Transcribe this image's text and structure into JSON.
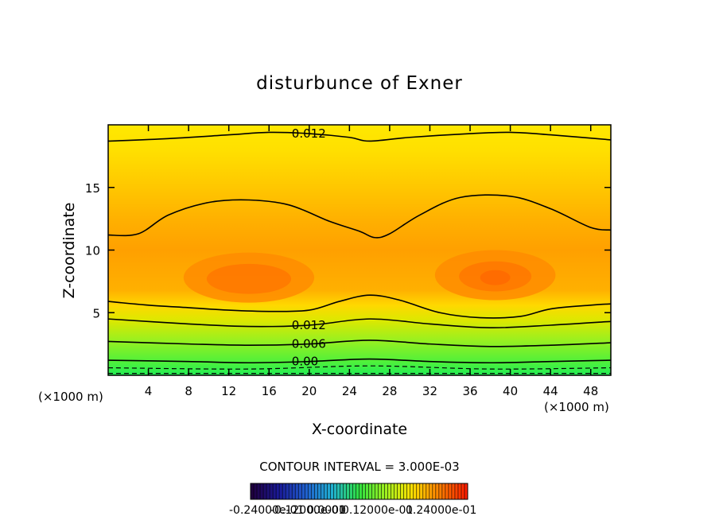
{
  "chart_data": {
    "type": "contour",
    "title": "disturbunce of Exner",
    "xlabel": "X-coordinate",
    "ylabel": "Z-coordinate",
    "x_unit": "(×1000 m)",
    "x_unit_right": "(×1000 m)",
    "xlim": [
      0,
      50
    ],
    "ylim": [
      0,
      20
    ],
    "x_ticks": [
      "4",
      "8",
      "12",
      "16",
      "20",
      "24",
      "28",
      "32",
      "36",
      "40",
      "44",
      "48"
    ],
    "x_tick_values": [
      4,
      8,
      12,
      16,
      20,
      24,
      28,
      32,
      36,
      40,
      44,
      48
    ],
    "y_ticks": [
      "5",
      "10",
      "15"
    ],
    "y_tick_values": [
      5,
      10,
      15
    ],
    "contour_interval_text": "CONTOUR INTERVAL = 3.000E-03",
    "contour_interval": 0.003,
    "line_contours": [
      {
        "label": "0.012",
        "points": [
          [
            0,
            18.7
          ],
          [
            6,
            18.9
          ],
          [
            12,
            19.2
          ],
          [
            16,
            19.4
          ],
          [
            20,
            19.3
          ],
          [
            24,
            19.0
          ],
          [
            26,
            18.7
          ],
          [
            30,
            19.0
          ],
          [
            36,
            19.3
          ],
          [
            40,
            19.4
          ],
          [
            44,
            19.2
          ],
          [
            50,
            18.8
          ]
        ]
      },
      {
        "label": "",
        "points": [
          [
            0,
            11.2
          ],
          [
            3,
            11.3
          ],
          [
            6,
            12.8
          ],
          [
            10,
            13.8
          ],
          [
            14,
            14.0
          ],
          [
            18,
            13.6
          ],
          [
            22,
            12.3
          ],
          [
            25,
            11.5
          ],
          [
            26.5,
            11.0
          ],
          [
            28,
            11.3
          ],
          [
            31,
            12.8
          ],
          [
            35,
            14.2
          ],
          [
            40,
            14.3
          ],
          [
            44,
            13.3
          ],
          [
            48,
            11.8
          ],
          [
            50,
            11.6
          ]
        ]
      },
      {
        "label": "",
        "points": [
          [
            0,
            5.9
          ],
          [
            4,
            5.6
          ],
          [
            8,
            5.4
          ],
          [
            12,
            5.2
          ],
          [
            16,
            5.1
          ],
          [
            20,
            5.2
          ],
          [
            23,
            5.9
          ],
          [
            26,
            6.4
          ],
          [
            29,
            6.0
          ],
          [
            33,
            5.0
          ],
          [
            37,
            4.6
          ],
          [
            41,
            4.7
          ],
          [
            44,
            5.3
          ],
          [
            48,
            5.6
          ],
          [
            50,
            5.7
          ]
        ]
      },
      {
        "label": "0.012",
        "points": [
          [
            0,
            4.5
          ],
          [
            8,
            4.1
          ],
          [
            14,
            3.9
          ],
          [
            20,
            4.0
          ],
          [
            26,
            4.5
          ],
          [
            32,
            4.1
          ],
          [
            38,
            3.8
          ],
          [
            44,
            4.0
          ],
          [
            50,
            4.3
          ]
        ]
      },
      {
        "label": "0.006",
        "points": [
          [
            0,
            2.7
          ],
          [
            8,
            2.5
          ],
          [
            14,
            2.4
          ],
          [
            20,
            2.5
          ],
          [
            26,
            2.8
          ],
          [
            32,
            2.5
          ],
          [
            38,
            2.3
          ],
          [
            44,
            2.4
          ],
          [
            50,
            2.6
          ]
        ]
      },
      {
        "label": "0.00",
        "points": [
          [
            0,
            1.2
          ],
          [
            8,
            1.1
          ],
          [
            14,
            1.0
          ],
          [
            20,
            1.1
          ],
          [
            26,
            1.3
          ],
          [
            32,
            1.1
          ],
          [
            38,
            1.0
          ],
          [
            44,
            1.1
          ],
          [
            50,
            1.2
          ]
        ]
      }
    ],
    "dashed_contours": [
      {
        "points": [
          [
            0,
            0.6
          ],
          [
            14,
            0.5
          ],
          [
            26,
            0.75
          ],
          [
            38,
            0.5
          ],
          [
            50,
            0.6
          ]
        ]
      },
      {
        "points": [
          [
            0,
            0.15
          ],
          [
            50,
            0.15
          ]
        ]
      }
    ],
    "fill_levels": [
      {
        "color": "#22ee55"
      },
      {
        "color": "#44f040"
      },
      {
        "color": "#66f030"
      },
      {
        "color": "#8ff020"
      },
      {
        "color": "#b8f010"
      },
      {
        "color": "#ddee00"
      },
      {
        "color": "#ffe800"
      },
      {
        "color": "#ffdc00"
      },
      {
        "color": "#ffc800"
      },
      {
        "color": "#ffb400"
      },
      {
        "color": "#ffa000"
      },
      {
        "color": "#ff8c00"
      },
      {
        "color": "#ff7800"
      },
      {
        "color": "#ff6a00"
      }
    ],
    "colorbar": {
      "labels": [
        "-0.24000e-01",
        "-0.12000e-01",
        "0.0000",
        "0.12000e-01",
        "0.24000e-01"
      ],
      "colors": [
        "#200040",
        "#1a1a9a",
        "#2060d0",
        "#20b0d0",
        "#30e040",
        "#a0f020",
        "#ffe000",
        "#ff8000",
        "#ff2000"
      ]
    }
  }
}
